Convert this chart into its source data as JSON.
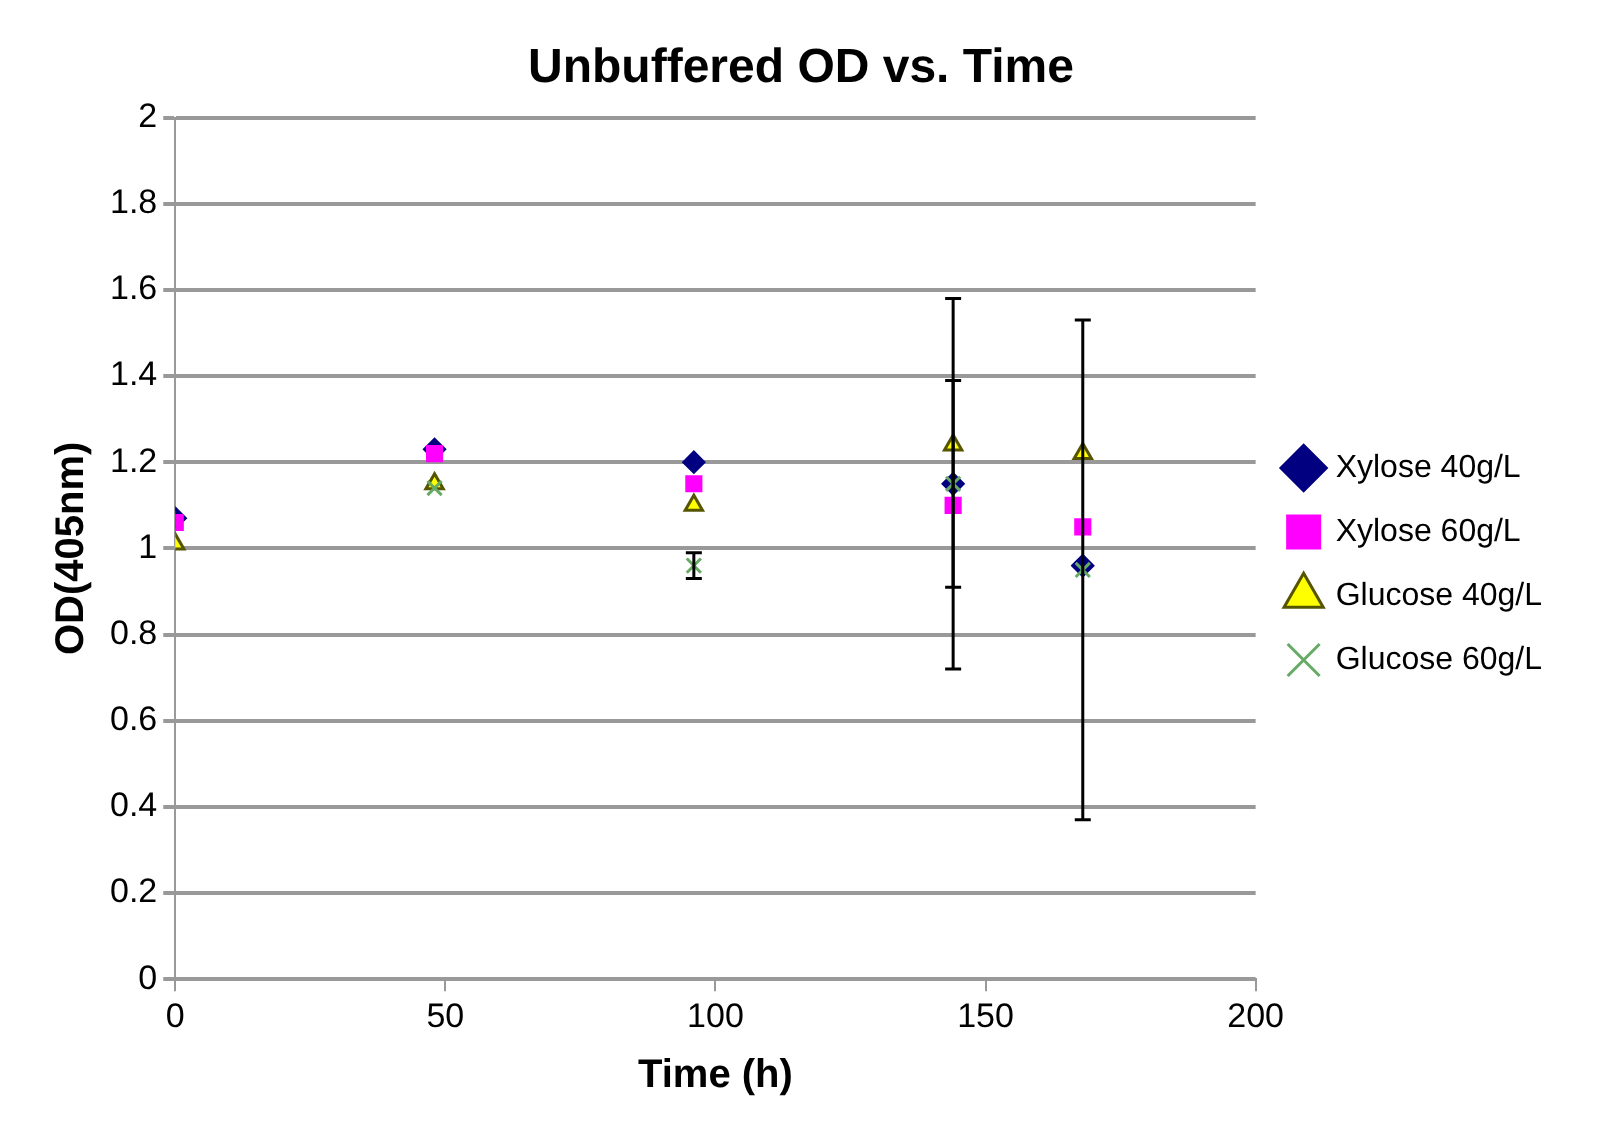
{
  "chart_data": {
    "type": "scatter",
    "title": "Unbuffered OD vs. Time",
    "xlabel": "Time (h)",
    "ylabel": "OD(405nm)",
    "xlim": [
      0,
      200
    ],
    "xticks": [
      0,
      50,
      100,
      150,
      200
    ],
    "ylim": [
      0,
      2
    ],
    "yticks": [
      0,
      0.2,
      0.4,
      0.6,
      0.8,
      1,
      1.2,
      1.4,
      1.6,
      1.8,
      2
    ],
    "grid": "y",
    "legend": "right",
    "series": [
      {
        "name": "Xylose 40g/L",
        "color": "#000080",
        "marker": "diamond",
        "x": [
          0,
          48,
          96,
          144,
          168
        ],
        "values": [
          1.07,
          1.23,
          1.2,
          1.15,
          0.96
        ],
        "errors": [
          null,
          null,
          null,
          0.24,
          null
        ]
      },
      {
        "name": "Xylose 60g/L",
        "color": "#ff00ff",
        "marker": "square",
        "x": [
          0,
          48,
          96,
          144,
          168
        ],
        "values": [
          1.06,
          1.22,
          1.15,
          1.1,
          1.05
        ]
      },
      {
        "name": "Glucose 40g/L",
        "color": "#ffff00",
        "marker": "triangle",
        "x": [
          0,
          48,
          96,
          144,
          168
        ],
        "values": [
          1.01,
          1.15,
          1.1,
          1.24,
          1.22
        ]
      },
      {
        "name": "Glucose 60g/L",
        "color": "#66aa66",
        "marker": "cross",
        "x": [
          48,
          96,
          144,
          168
        ],
        "values": [
          1.14,
          0.96,
          1.15,
          0.95
        ],
        "errors": [
          null,
          0.03,
          0.43,
          0.58
        ]
      }
    ]
  }
}
